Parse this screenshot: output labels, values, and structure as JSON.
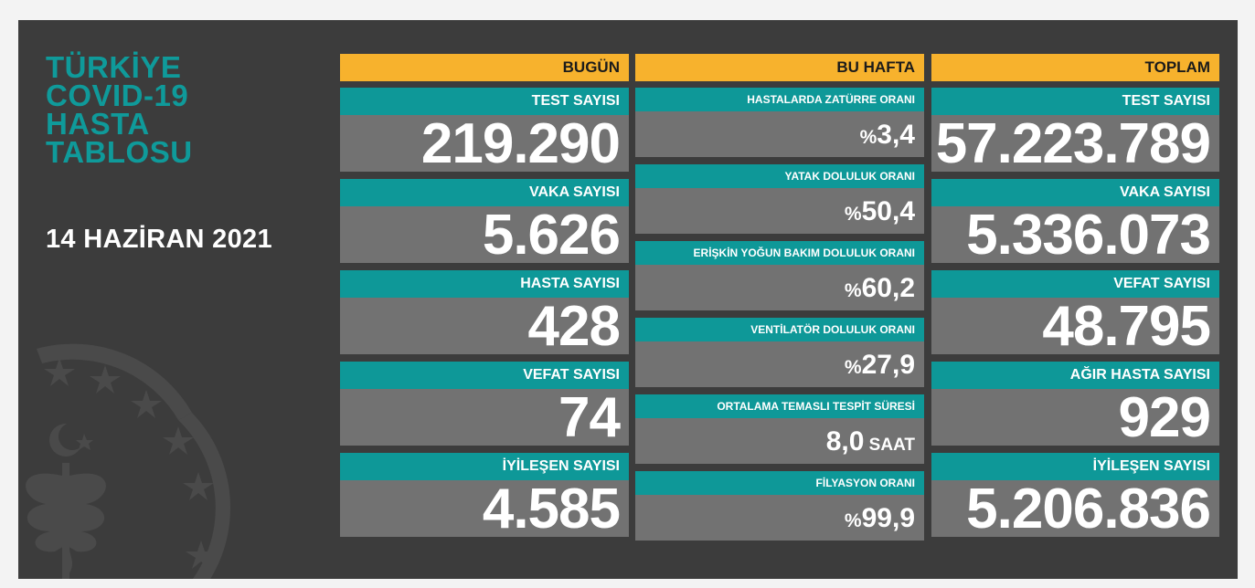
{
  "title_lines": [
    "TÜRKİYE",
    "COVID-19",
    "HASTA",
    "TABLOSU"
  ],
  "date": "14 HAZİRAN 2021",
  "columns": {
    "today": {
      "header": "BUGÜN",
      "items": [
        {
          "label": "TEST SAYISI",
          "value": "219.290"
        },
        {
          "label": "VAKA SAYISI",
          "value": "5.626"
        },
        {
          "label": "HASTA SAYISI",
          "value": "428"
        },
        {
          "label": "VEFAT SAYISI",
          "value": "74"
        },
        {
          "label": "İYİLEŞEN SAYISI",
          "value": "4.585"
        }
      ]
    },
    "week": {
      "header": "BU HAFTA",
      "items": [
        {
          "label": "HASTALARDA ZATÜRRE ORANI",
          "prefix": "%",
          "value": "3,4",
          "suffix": ""
        },
        {
          "label": "YATAK DOLULUK ORANI",
          "prefix": "%",
          "value": "50,4",
          "suffix": ""
        },
        {
          "label": "ERİŞKİN YOĞUN BAKIM DOLULUK ORANI",
          "prefix": "%",
          "value": "60,2",
          "suffix": ""
        },
        {
          "label": "VENTİLATÖR DOLULUK ORANI",
          "prefix": "%",
          "value": "27,9",
          "suffix": ""
        },
        {
          "label": "ORTALAMA TEMASLI TESPİT SÜRESİ",
          "prefix": "",
          "value": "8,0",
          "suffix": " SAAT"
        },
        {
          "label": "FİLYASYON ORANI",
          "prefix": "%",
          "value": "99,9",
          "suffix": ""
        }
      ]
    },
    "total": {
      "header": "TOPLAM",
      "items": [
        {
          "label": "TEST SAYISI",
          "value": "57.223.789"
        },
        {
          "label": "VAKA SAYISI",
          "value": "5.336.073"
        },
        {
          "label": "VEFAT SAYISI",
          "value": "48.795"
        },
        {
          "label": "AĞIR HASTA SAYISI",
          "value": "929"
        },
        {
          "label": "İYİLEŞEN SAYISI",
          "value": "5.206.836"
        }
      ]
    }
  },
  "colors": {
    "background": "#3c3c3c",
    "header": "#f7b22d",
    "label": "#0e9898",
    "value_box": "#727272",
    "title": "#0f9a9a"
  },
  "icons": [
    "ministry-of-health-emblem-icon"
  ]
}
